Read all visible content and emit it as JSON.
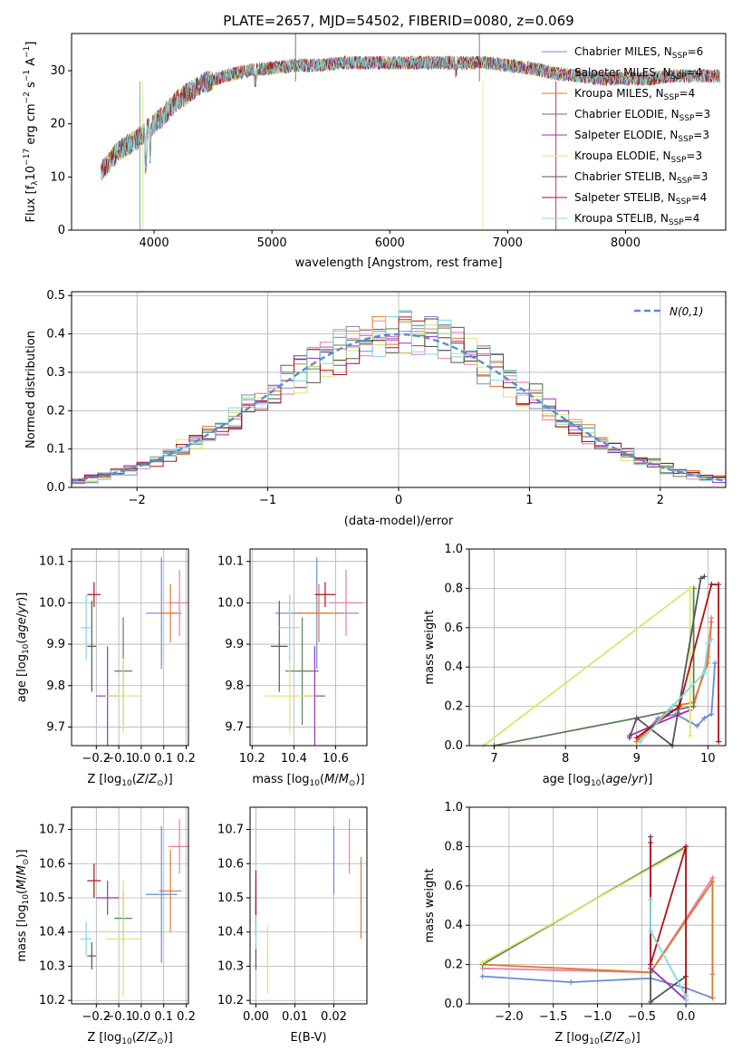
{
  "figure": {
    "title": "PLATE=2657, MJD=54502, FIBERID=0080, z=0.069"
  },
  "models": [
    {
      "name": "Chabrier MILES",
      "nssp": "6",
      "color": "#6b8bd9"
    },
    {
      "name": "Salpeter MILES",
      "nssp": "4",
      "color": "#e87ea8"
    },
    {
      "name": "Kroupa MILES",
      "nssp": "4",
      "color": "#e07a26"
    },
    {
      "name": "Chabrier ELODIE",
      "nssp": "3",
      "color": "#5a7f5a"
    },
    {
      "name": "Salpeter ELODIE",
      "nssp": "3",
      "color": "#9a31b8"
    },
    {
      "name": "Kroupa ELODIE",
      "nssp": "3",
      "color": "#d5ea68"
    },
    {
      "name": "Chabrier STELIB",
      "nssp": "3",
      "color": "#555555"
    },
    {
      "name": "Salpeter STELIB",
      "nssp": "4",
      "color": "#b0111b"
    },
    {
      "name": "Kroupa STELIB",
      "nssp": "4",
      "color": "#7fd9e2"
    }
  ],
  "legend_nssp_prefix": "N",
  "legend_nssp_sub": "SSP",
  "chart_data": [
    {
      "id": "spectrum",
      "type": "line",
      "xlabel": "wavelength [Angstrom, rest frame]",
      "ylabel": "Flux [f_λ 10^-17 erg cm^-2 s^-1 A^-1]",
      "xlim": [
        3300,
        8850
      ],
      "ylim": [
        0,
        37
      ],
      "xticks": [
        4000,
        5000,
        6000,
        7000,
        8000
      ],
      "yticks": [
        0,
        10,
        20,
        30
      ],
      "grid": false,
      "legend_position": "top-right",
      "x": [
        3550,
        3700,
        3850,
        4000,
        4100,
        4200,
        4300,
        4400,
        4600,
        4800,
        5000,
        5200,
        5400,
        5600,
        5800,
        6000,
        6200,
        6400,
        6600,
        6800,
        7000,
        7200,
        7400,
        7600,
        7800,
        8000,
        8200,
        8400,
        8600,
        8800
      ],
      "y": [
        11,
        15,
        17,
        20,
        22,
        24.5,
        26,
        27.5,
        29,
        30,
        30.5,
        31,
        31,
        31.5,
        31.5,
        31.5,
        31.5,
        31.5,
        31.5,
        31.5,
        31,
        30.5,
        29.5,
        29,
        28.5,
        28.5,
        28.5,
        29,
        29,
        29
      ]
    },
    {
      "id": "residuals",
      "type": "line",
      "xlabel": "(data-model)/error",
      "ylabel": "Normed distribution",
      "xlim": [
        -2.5,
        2.5
      ],
      "ylim": [
        0,
        0.51
      ],
      "xticks": [
        -2,
        -1,
        0,
        1,
        2
      ],
      "yticks": [
        0.0,
        0.1,
        0.2,
        0.3,
        0.4,
        0.5
      ],
      "grid": true,
      "legend": "N(0,1)",
      "legend_position": "top-right",
      "gaussian": {
        "mu": 0,
        "sigma": 1
      },
      "bins": 50
    },
    {
      "id": "age_vs_Z",
      "type": "scatter",
      "xlabel": "Z [log10(Z/Z⊙)]",
      "ylabel": "age [log10(age/yr)]",
      "xlim": [
        -0.31,
        0.21
      ],
      "ylim": [
        9.655,
        10.13
      ],
      "xticks": [
        -0.2,
        -0.1,
        0.0,
        0.1,
        0.2
      ],
      "yticks": [
        9.7,
        9.8,
        9.9,
        10.0,
        10.1
      ],
      "grid": true,
      "points": [
        {
          "model": "Chabrier MILES",
          "x": 0.09,
          "y": 9.975,
          "xerr": 0.07,
          "yerr": 0.135
        },
        {
          "model": "Salpeter MILES",
          "x": 0.17,
          "y": 10.0,
          "xerr": 0.05,
          "yerr": 0.08
        },
        {
          "model": "Kroupa MILES",
          "x": 0.13,
          "y": 9.975,
          "xerr": 0.05,
          "yerr": 0.07
        },
        {
          "model": "Chabrier ELODIE",
          "x": -0.08,
          "y": 9.835,
          "xerr": 0.04,
          "yerr": 0.13
        },
        {
          "model": "Salpeter ELODIE",
          "x": -0.15,
          "y": 9.775,
          "xerr": 0.05,
          "yerr": 0.12
        },
        {
          "model": "Kroupa ELODIE",
          "x": -0.08,
          "y": 9.775,
          "xerr": 0.08,
          "yerr": 0.09
        },
        {
          "model": "Chabrier STELIB",
          "x": -0.22,
          "y": 9.895,
          "xerr": 0.02,
          "yerr": 0.11
        },
        {
          "model": "Salpeter STELIB",
          "x": -0.21,
          "y": 10.02,
          "xerr": 0.03,
          "yerr": 0.03
        },
        {
          "model": "Kroupa STELIB",
          "x": -0.245,
          "y": 9.94,
          "xerr": 0.025,
          "yerr": 0.08
        }
      ]
    },
    {
      "id": "age_vs_mass",
      "type": "scatter",
      "xlabel": "mass [log10(M/M⊙)]",
      "ylabel": "",
      "xlim": [
        10.19,
        10.75
      ],
      "ylim": [
        9.655,
        10.13
      ],
      "xticks": [
        10.2,
        10.4,
        10.6
      ],
      "yticks": [
        9.7,
        9.8,
        9.9,
        10.0,
        10.1
      ],
      "grid": true,
      "points": [
        {
          "model": "Chabrier MILES",
          "x": 10.51,
          "y": 9.975,
          "xerr": 0.2,
          "yerr": 0.135
        },
        {
          "model": "Salpeter MILES",
          "x": 10.65,
          "y": 10.0,
          "xerr": 0.08,
          "yerr": 0.08
        },
        {
          "model": "Kroupa MILES",
          "x": 10.52,
          "y": 9.975,
          "xerr": 0.12,
          "yerr": 0.07
        },
        {
          "model": "Chabrier ELODIE",
          "x": 10.44,
          "y": 9.835,
          "xerr": 0.08,
          "yerr": 0.13
        },
        {
          "model": "Salpeter ELODIE",
          "x": 10.5,
          "y": 9.775,
          "xerr": 0.05,
          "yerr": 0.12
        },
        {
          "model": "Kroupa ELODIE",
          "x": 10.38,
          "y": 9.775,
          "xerr": 0.12,
          "yerr": 0.09
        },
        {
          "model": "Chabrier STELIB",
          "x": 10.33,
          "y": 9.895,
          "xerr": 0.04,
          "yerr": 0.11
        },
        {
          "model": "Salpeter STELIB",
          "x": 10.55,
          "y": 10.02,
          "xerr": 0.05,
          "yerr": 0.03
        },
        {
          "model": "Kroupa STELIB",
          "x": 10.38,
          "y": 9.94,
          "xerr": 0.05,
          "yerr": 0.08
        }
      ]
    },
    {
      "id": "weight_vs_age",
      "type": "line",
      "xlabel": "age [log10(age/yr)]",
      "ylabel": "mass weight",
      "xlim": [
        6.65,
        10.25
      ],
      "ylim": [
        0,
        1.0
      ],
      "xticks": [
        7,
        8,
        9,
        10
      ],
      "yticks": [
        0.0,
        0.2,
        0.4,
        0.6,
        0.8,
        1.0
      ],
      "grid": true,
      "series": [
        {
          "model": "Chabrier MILES",
          "x": [
            9.0,
            9.3,
            9.55,
            9.75,
            9.85,
            9.95,
            10.05,
            10.1
          ],
          "y": [
            0.02,
            0.14,
            0.16,
            0.12,
            0.1,
            0.14,
            0.16,
            0.42
          ]
        },
        {
          "model": "Salpeter MILES",
          "x": [
            9.0,
            9.5,
            9.8,
            10.0,
            10.05
          ],
          "y": [
            0.04,
            0.18,
            0.2,
            0.45,
            0.65
          ]
        },
        {
          "model": "Kroupa MILES",
          "x": [
            9.0,
            9.5,
            9.8,
            10.0,
            10.05
          ],
          "y": [
            0.02,
            0.2,
            0.22,
            0.42,
            0.63
          ]
        },
        {
          "model": "Chabrier ELODIE",
          "x": [
            7.0,
            9.0,
            9.8,
            9.8
          ],
          "y": [
            0.0,
            0.14,
            0.2,
            0.8
          ]
        },
        {
          "model": "Salpeter ELODIE",
          "x": [
            8.9,
            9.6,
            9.75
          ],
          "y": [
            0.05,
            0.16,
            0.18
          ]
        },
        {
          "model": "Kroupa ELODIE",
          "x": [
            6.85,
            9.75,
            9.75
          ],
          "y": [
            0.0,
            0.8,
            0.05
          ]
        },
        {
          "model": "Chabrier STELIB",
          "x": [
            8.9,
            9.0,
            9.5,
            9.9,
            9.95
          ],
          "y": [
            0.04,
            0.14,
            0.0,
            0.85,
            0.86
          ]
        },
        {
          "model": "Salpeter STELIB",
          "x": [
            9.0,
            9.6,
            10.05,
            10.15,
            10.15
          ],
          "y": [
            0.04,
            0.2,
            0.82,
            0.82,
            0.02
          ]
        },
        {
          "model": "Kroupa STELIB",
          "x": [
            9.05,
            9.5,
            9.95,
            10.0,
            10.05
          ],
          "y": [
            0.02,
            0.2,
            0.37,
            0.52,
            0.54
          ]
        }
      ]
    },
    {
      "id": "mass_vs_Z",
      "type": "scatter",
      "xlabel": "Z [log10(Z/Z⊙)]",
      "ylabel": "mass [log10(M/M⊙)]",
      "xlim": [
        -0.31,
        0.21
      ],
      "ylim": [
        10.19,
        10.765
      ],
      "xticks": [
        -0.2,
        -0.1,
        0.0,
        0.1,
        0.2
      ],
      "yticks": [
        10.2,
        10.3,
        10.4,
        10.5,
        10.6,
        10.7
      ],
      "grid": true,
      "points": [
        {
          "model": "Chabrier MILES",
          "x": 0.09,
          "y": 10.51,
          "xerr": 0.07,
          "yerr": 0.2
        },
        {
          "model": "Salpeter MILES",
          "x": 0.17,
          "y": 10.65,
          "xerr": 0.05,
          "yerr": 0.08
        },
        {
          "model": "Kroupa MILES",
          "x": 0.13,
          "y": 10.52,
          "xerr": 0.05,
          "yerr": 0.12
        },
        {
          "model": "Chabrier ELODIE",
          "x": -0.08,
          "y": 10.44,
          "xerr": 0.04,
          "yerr": 0.08
        },
        {
          "model": "Salpeter ELODIE",
          "x": -0.15,
          "y": 10.5,
          "xerr": 0.05,
          "yerr": 0.05
        },
        {
          "model": "Kroupa ELODIE",
          "x": -0.08,
          "y": 10.38,
          "xerr": 0.08,
          "yerr": 0.17
        },
        {
          "model": "Chabrier STELIB",
          "x": -0.22,
          "y": 10.33,
          "xerr": 0.02,
          "yerr": 0.04
        },
        {
          "model": "Salpeter STELIB",
          "x": -0.21,
          "y": 10.55,
          "xerr": 0.03,
          "yerr": 0.05
        },
        {
          "model": "Kroupa STELIB",
          "x": -0.245,
          "y": 10.38,
          "xerr": 0.025,
          "yerr": 0.05
        }
      ]
    },
    {
      "id": "mass_vs_ebv",
      "type": "scatter",
      "xlabel": "E(B-V)",
      "ylabel": "",
      "xlim": [
        -0.0015,
        0.0285
      ],
      "ylim": [
        10.19,
        10.765
      ],
      "xticks": [
        0.0,
        0.01,
        0.02
      ],
      "yticks": [
        10.2,
        10.3,
        10.4,
        10.5,
        10.6,
        10.7
      ],
      "grid": true,
      "points": [
        {
          "model": "Chabrier MILES",
          "x": 0.02,
          "y": 10.61,
          "xerr": 0,
          "yerr": 0.1
        },
        {
          "model": "Salpeter MILES",
          "x": 0.024,
          "y": 10.65,
          "xerr": 0,
          "yerr": 0.08
        },
        {
          "model": "Kroupa MILES",
          "x": 0.027,
          "y": 10.5,
          "xerr": 0,
          "yerr": 0.12
        },
        {
          "model": "Chabrier ELODIE",
          "x": 0.0,
          "y": 10.44,
          "xerr": 0,
          "yerr": 0.05
        },
        {
          "model": "Salpeter ELODIE",
          "x": 0.0,
          "y": 10.5,
          "xerr": 0,
          "yerr": 0.05
        },
        {
          "model": "Kroupa ELODIE",
          "x": 0.003,
          "y": 10.32,
          "xerr": 0,
          "yerr": 0.1
        },
        {
          "model": "Chabrier STELIB",
          "x": 0.0,
          "y": 10.33,
          "xerr": 0,
          "yerr": 0.04
        },
        {
          "model": "Salpeter STELIB",
          "x": 0.0,
          "y": 10.5,
          "xerr": 0,
          "yerr": 0.08
        },
        {
          "model": "Kroupa STELIB",
          "x": 0.0,
          "y": 10.4,
          "xerr": 0,
          "yerr": 0.05
        }
      ]
    },
    {
      "id": "weight_vs_Z",
      "type": "line",
      "xlabel": "Z [log10(Z/Z⊙)]",
      "ylabel": "mass weight",
      "xlim": [
        -2.45,
        0.45
      ],
      "ylim": [
        0,
        1.0
      ],
      "xticks": [
        -2.0,
        -1.5,
        -1.0,
        -0.5,
        0.0
      ],
      "yticks": [
        0.0,
        0.2,
        0.4,
        0.6,
        0.8,
        1.0
      ],
      "grid": true,
      "series": [
        {
          "model": "Chabrier MILES",
          "x": [
            -2.3,
            -1.3,
            -0.4,
            0.0,
            0.3
          ],
          "y": [
            0.14,
            0.11,
            0.13,
            0.08,
            0.03
          ]
        },
        {
          "model": "Salpeter MILES",
          "x": [
            -2.3,
            -0.4,
            0.3,
            0.3
          ],
          "y": [
            0.18,
            0.16,
            0.64,
            0.15
          ]
        },
        {
          "model": "Kroupa MILES",
          "x": [
            -2.3,
            -0.4,
            0.3,
            0.3
          ],
          "y": [
            0.2,
            0.16,
            0.62,
            0.03
          ]
        },
        {
          "model": "Chabrier ELODIE",
          "x": [
            -2.3,
            0.0,
            0.0
          ],
          "y": [
            0.2,
            0.8,
            0.1
          ]
        },
        {
          "model": "Salpeter ELODIE",
          "x": [
            -0.4,
            0.0
          ],
          "y": [
            0.18,
            0.02
          ]
        },
        {
          "model": "Kroupa ELODIE",
          "x": [
            -2.3,
            0.0,
            0.0
          ],
          "y": [
            0.21,
            0.79,
            0.1
          ]
        },
        {
          "model": "Chabrier STELIB",
          "x": [
            -0.4,
            -0.4,
            0.0,
            0.0
          ],
          "y": [
            0.85,
            0.01,
            0.14,
            0.02
          ]
        },
        {
          "model": "Salpeter STELIB",
          "x": [
            -0.4,
            -0.4,
            0.0,
            0.0
          ],
          "y": [
            0.82,
            0.2,
            0.8,
            0.04
          ]
        },
        {
          "model": "Kroupa STELIB",
          "x": [
            -0.4,
            -0.4,
            0.0,
            0.0
          ],
          "y": [
            0.53,
            0.37,
            0.04,
            0.02
          ]
        }
      ]
    }
  ]
}
